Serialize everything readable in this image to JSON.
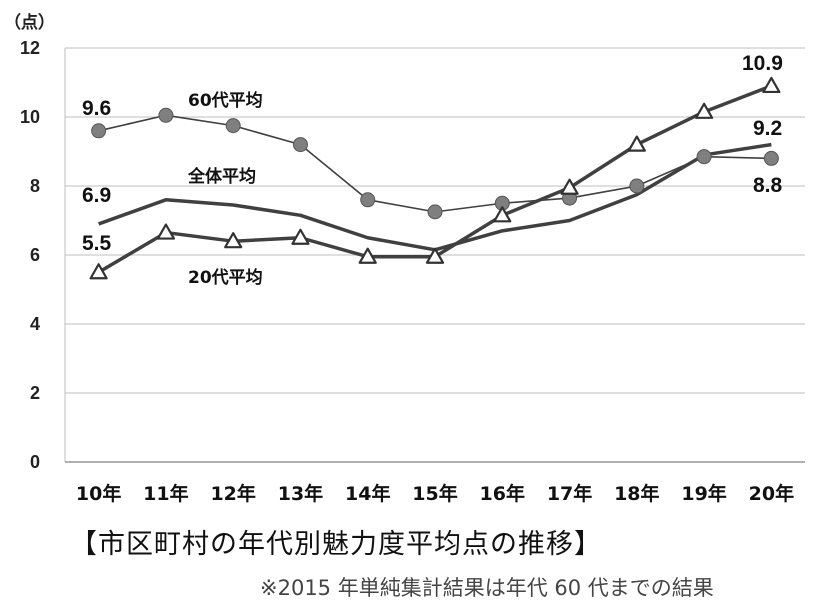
{
  "chart_data": {
    "type": "line",
    "ylabel": "（点）",
    "ylim": [
      0,
      12
    ],
    "yticks": [
      "0",
      "2",
      "4",
      "6",
      "8",
      "10",
      "12"
    ],
    "categories": [
      "10年",
      "11年",
      "12年",
      "13年",
      "14年",
      "15年",
      "16年",
      "17年",
      "18年",
      "19年",
      "20年"
    ],
    "grid": true,
    "series": [
      {
        "name": "60代平均",
        "marker": "circle",
        "values": [
          9.6,
          10.05,
          9.75,
          9.2,
          7.6,
          7.25,
          7.5,
          7.65,
          8.0,
          8.85,
          8.8
        ]
      },
      {
        "name": "全体平均",
        "marker": "none",
        "values": [
          6.9,
          7.6,
          7.45,
          7.15,
          6.5,
          6.15,
          6.7,
          7.0,
          7.75,
          8.9,
          9.2
        ]
      },
      {
        "name": "20代平均",
        "marker": "triangle",
        "values": [
          5.5,
          6.65,
          6.4,
          6.5,
          5.95,
          5.95,
          7.15,
          7.95,
          9.2,
          10.15,
          10.9
        ]
      }
    ],
    "data_labels": [
      "9.6",
      "6.9",
      "5.5",
      "10.9",
      "9.2",
      "8.8"
    ],
    "colors": {
      "line": "#404040",
      "grid": "#bfbfbf",
      "marker_fill": "#7f7f7f"
    }
  },
  "caption": "【市区町村の年代別魅力度平均点の推移】",
  "note": "※2015 年単純集計結果は年代 60 代までの結果"
}
